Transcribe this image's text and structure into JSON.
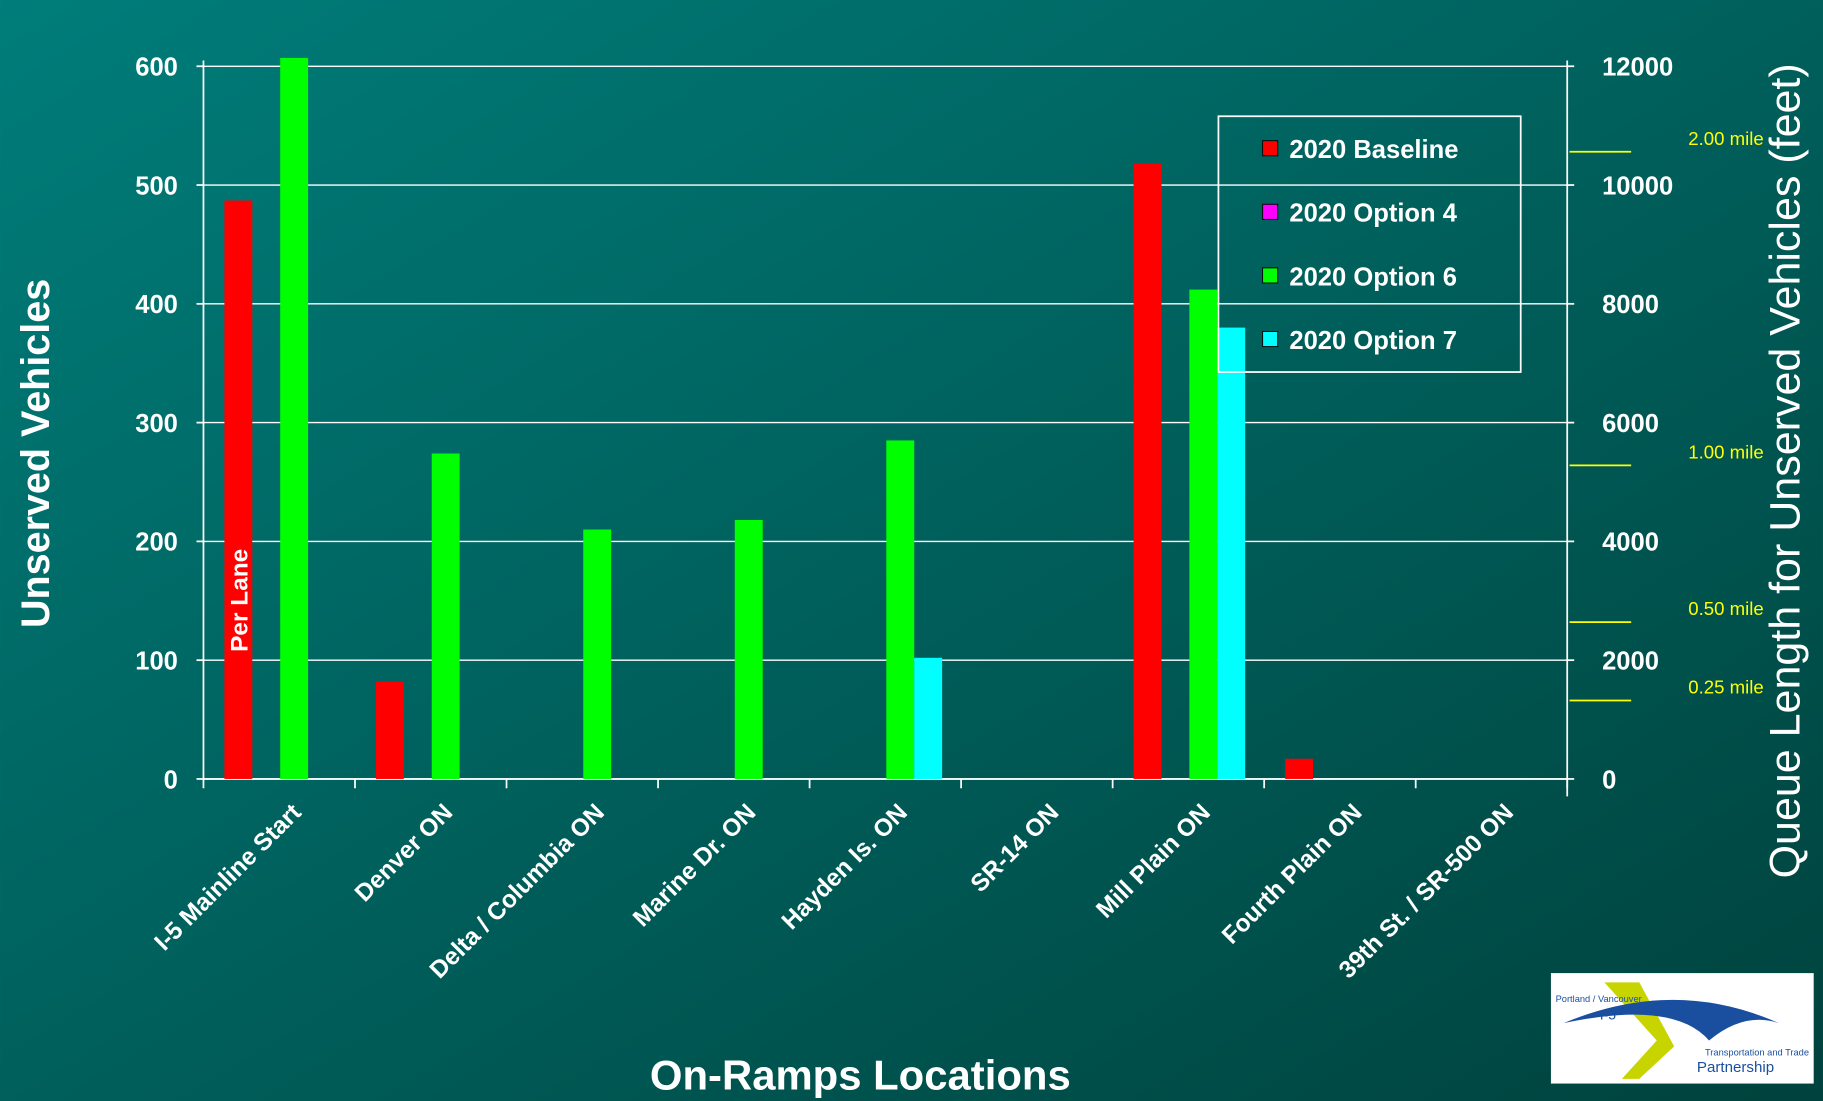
{
  "chart_data": {
    "type": "bar",
    "x_label": "On-Ramps Locations",
    "y_label": "Unserved Vehicles",
    "y2_label": "Queue Length for Unserved Vehicles (feet)",
    "categories": [
      "I-5 Mainline Start",
      "Denver ON",
      "Delta / Columbia ON",
      "Marine Dr. ON",
      "Hayden Is. ON",
      "SR-14 ON",
      "Mill Plain ON",
      "Fourth Plain ON",
      "39th St. / SR-500 ON"
    ],
    "series": [
      {
        "name": "2020 Baseline",
        "color": "#ff0000",
        "values": [
          487,
          82,
          0,
          0,
          0,
          0,
          518,
          17,
          0
        ]
      },
      {
        "name": "2020 Option 4",
        "color": "#ff00ff",
        "values": [
          0,
          0,
          0,
          0,
          0,
          0,
          0,
          0,
          0
        ]
      },
      {
        "name": "2020 Option 6",
        "color": "#00ff00",
        "values": [
          607,
          274,
          210,
          218,
          285,
          0,
          412,
          0,
          0
        ]
      },
      {
        "name": "2020 Option 7",
        "color": "#00ffff",
        "values": [
          0,
          0,
          0,
          0,
          102,
          0,
          380,
          0,
          0
        ]
      }
    ],
    "ylim": [
      0,
      600
    ],
    "yticks": [
      0,
      100,
      200,
      300,
      400,
      500,
      600
    ],
    "y2lim": [
      0,
      12000
    ],
    "y2ticks": [
      0,
      2000,
      4000,
      6000,
      8000,
      10000,
      12000
    ],
    "grid": true,
    "legend": "upper right",
    "annotations": [
      {
        "text": "Per Lane"
      },
      {
        "text": "2.00 mile",
        "y2": 10560,
        "color": "#ffff00"
      },
      {
        "text": "1.00 mile",
        "y2": 5280,
        "color": "#ffff00"
      },
      {
        "text": "0.50 mile",
        "y2": 2640,
        "color": "#ffff00"
      },
      {
        "text": "0.25 mile",
        "y2": 1320,
        "color": "#ffff00"
      }
    ]
  },
  "logo": {
    "line1": "Portland / Vancouver",
    "line2": "I-5",
    "line3": "Transportation and Trade",
    "line4": "Partnership"
  }
}
